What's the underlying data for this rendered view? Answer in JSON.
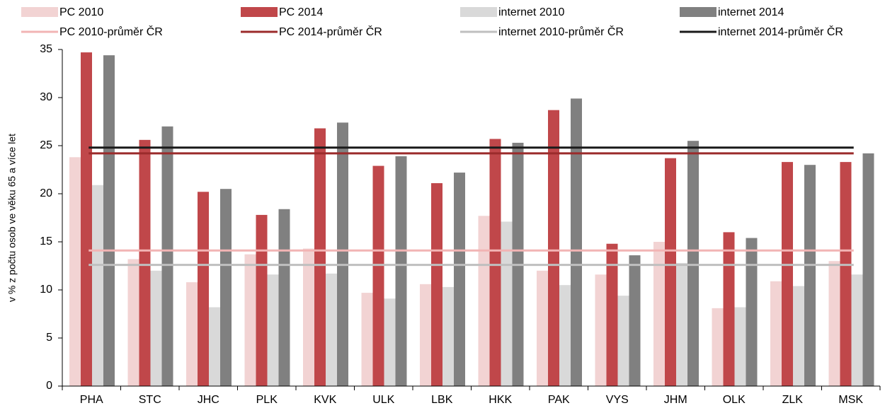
{
  "chart_data": {
    "type": "bar",
    "ylabel": "v % z počtu osob ve věku 65 a více let",
    "categories": [
      "PHA",
      "STC",
      "JHC",
      "PLK",
      "KVK",
      "ULK",
      "LBK",
      "HKK",
      "PAK",
      "VYS",
      "JHM",
      "OLK",
      "ZLK",
      "MSK"
    ],
    "series": [
      {
        "name": "PC 2010",
        "color": "#f2d3d3",
        "values": [
          23.8,
          13.2,
          10.8,
          13.7,
          14.3,
          9.7,
          10.6,
          17.7,
          12.0,
          11.6,
          15.0,
          8.1,
          10.9,
          13.0
        ]
      },
      {
        "name": "PC 2014",
        "color": "#c0474a",
        "values": [
          34.7,
          25.6,
          20.2,
          17.8,
          26.8,
          22.9,
          21.1,
          25.7,
          28.7,
          14.8,
          23.7,
          16.0,
          23.3,
          23.3
        ]
      },
      {
        "name": "internet 2010",
        "color": "#d9d9d9",
        "values": [
          20.9,
          12.0,
          8.2,
          11.6,
          11.7,
          9.1,
          10.3,
          17.1,
          10.5,
          9.4,
          12.8,
          8.2,
          10.4,
          11.6
        ]
      },
      {
        "name": "internet 2014",
        "color": "#808080",
        "values": [
          34.4,
          27.0,
          20.5,
          18.4,
          27.4,
          23.9,
          22.2,
          25.3,
          29.9,
          13.6,
          25.5,
          15.4,
          23.0,
          24.2
        ]
      }
    ],
    "averages": [
      {
        "name": "PC 2010-průměr ČR",
        "color": "#f2b4b4",
        "value": 14.1
      },
      {
        "name": "PC 2014-průměr ČR",
        "color": "#9b2b2b",
        "value": 24.2
      },
      {
        "name": "internet 2010-průměr ČR",
        "color": "#bfbfbf",
        "value": 12.6
      },
      {
        "name": "internet 2014-průměr ČR",
        "color": "#1a1a1a",
        "value": 24.8
      }
    ],
    "ylim": [
      0,
      35
    ],
    "yticks": [
      0,
      5,
      10,
      15,
      20,
      25,
      30,
      35
    ]
  }
}
